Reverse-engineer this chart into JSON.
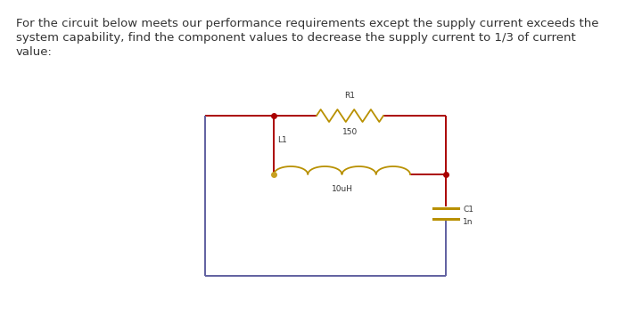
{
  "text_line1": "For the circuit below meets our performance requirements except the supply current exceeds the",
  "text_line2": "system capability, find the component values to decrease the supply current to 1/3 of current",
  "text_line3": "value:",
  "text_fontsize": 9.5,
  "text_color": "#333333",
  "bg_color": "#ffffff",
  "wire_blue": "#6060a0",
  "wire_red": "#aa0000",
  "comp_gold": "#b89000",
  "comp_dot": "#c8a020",
  "R1_label": "R1",
  "R1_value": "150",
  "L1_label": "L1",
  "L1_value": "10uH",
  "C1_label": "C1",
  "C1_value": "1n",
  "fig_w": 7.2,
  "fig_h": 3.54,
  "dpi": 100
}
